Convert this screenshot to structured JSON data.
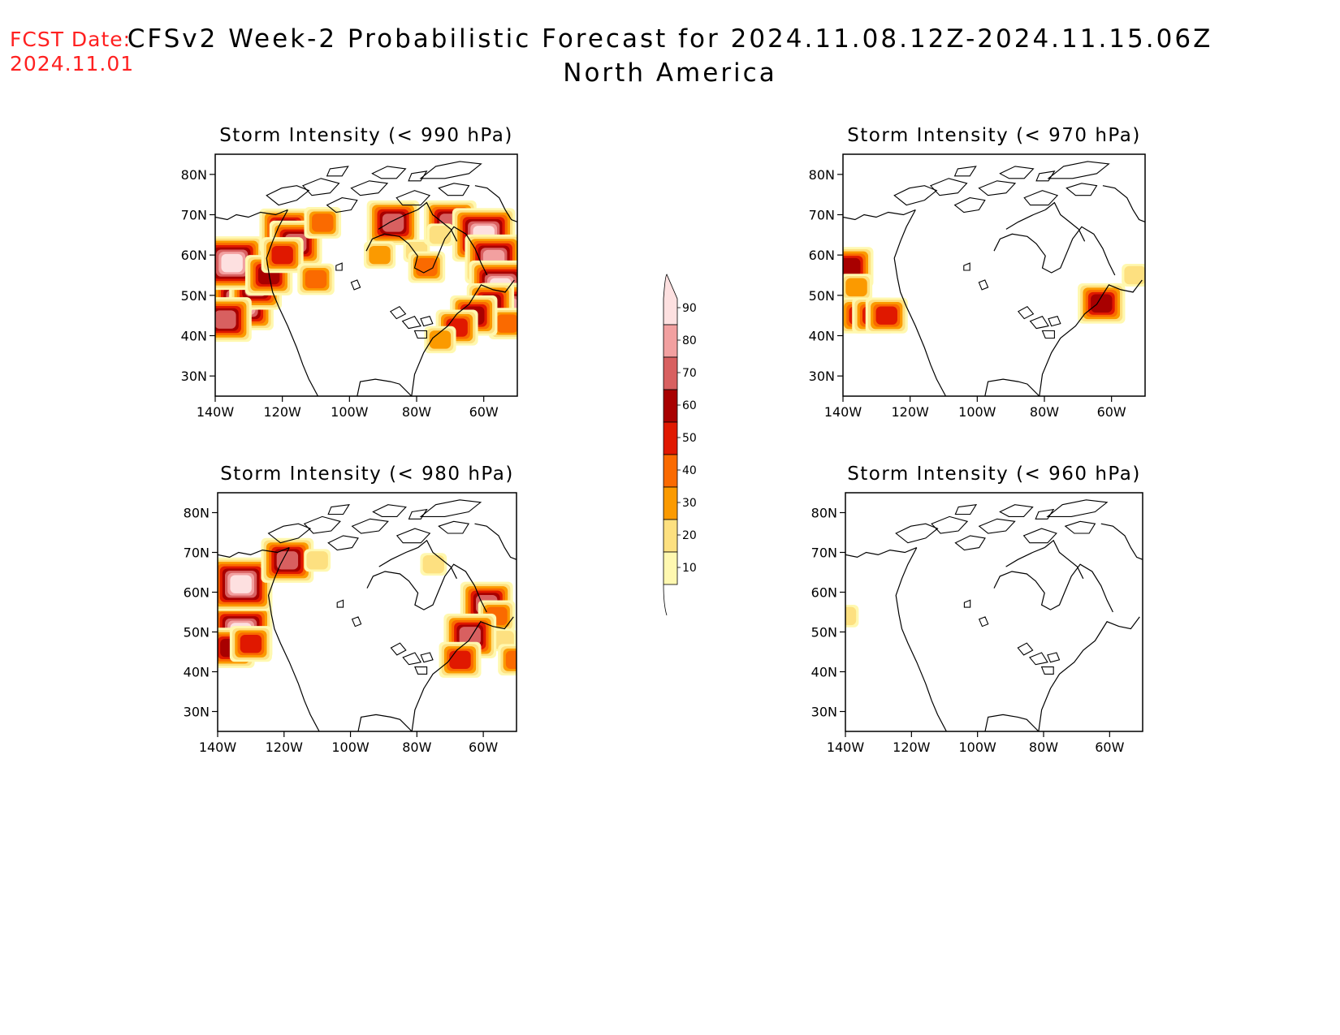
{
  "header": {
    "fcst_label": "FCST Date:",
    "fcst_date": "2024.11.01",
    "title": "CFSv2 Week-2 Probabilistic Forecast for 2024.11.08.12Z-2024.11.15.06Z",
    "subtitle": "North America"
  },
  "map_axes": {
    "lat_ticks": [
      "80N",
      "70N",
      "60N",
      "50N",
      "40N",
      "30N"
    ],
    "lon_ticks": [
      "140W",
      "120W",
      "100W",
      "80W",
      "60W"
    ],
    "lat_values": [
      80,
      70,
      60,
      50,
      40,
      30
    ],
    "lon_values": [
      -140,
      -120,
      -100,
      -80,
      -60
    ],
    "lat_range": [
      25,
      85
    ],
    "lon_range": [
      -140,
      -50
    ]
  },
  "panels": [
    {
      "title": "Storm Intensity (< 990 hPa)",
      "blobs": [
        {
          "lon": -136,
          "lat": 50,
          "prob": 80
        },
        {
          "lon": -132,
          "lat": 48,
          "prob": 90
        },
        {
          "lon": -128,
          "lat": 52,
          "prob": 70
        },
        {
          "lon": -135,
          "lat": 58,
          "prob": 90
        },
        {
          "lon": -137,
          "lat": 44,
          "prob": 70
        },
        {
          "lon": -124,
          "lat": 55,
          "prob": 60
        },
        {
          "lon": -119,
          "lat": 66,
          "prob": 70
        },
        {
          "lon": -116,
          "lat": 63,
          "prob": 70
        },
        {
          "lon": -120,
          "lat": 60,
          "prob": 50
        },
        {
          "lon": -108,
          "lat": 68,
          "prob": 40
        },
        {
          "lon": -110,
          "lat": 54,
          "prob": 40
        },
        {
          "lon": -87,
          "lat": 68,
          "prob": 70
        },
        {
          "lon": -91,
          "lat": 60,
          "prob": 30
        },
        {
          "lon": -80,
          "lat": 61,
          "prob": 20
        },
        {
          "lon": -77,
          "lat": 57,
          "prob": 40
        },
        {
          "lon": -70,
          "lat": 68,
          "prob": 70
        },
        {
          "lon": -73,
          "lat": 65,
          "prob": 20
        },
        {
          "lon": -60,
          "lat": 65,
          "prob": 90
        },
        {
          "lon": -57,
          "lat": 59,
          "prob": 80
        },
        {
          "lon": -55,
          "lat": 52,
          "prob": 90
        },
        {
          "lon": -53,
          "lat": 47,
          "prob": 80
        },
        {
          "lon": -58,
          "lat": 48,
          "prob": 60
        },
        {
          "lon": -53,
          "lat": 43,
          "prob": 40
        },
        {
          "lon": -63,
          "lat": 45,
          "prob": 60
        },
        {
          "lon": -68,
          "lat": 42,
          "prob": 50
        },
        {
          "lon": -73,
          "lat": 39,
          "prob": 30
        }
      ]
    },
    {
      "title": "Storm Intensity (< 970 hPa)",
      "blobs": [
        {
          "lon": -138,
          "lat": 57,
          "prob": 60
        },
        {
          "lon": -136,
          "lat": 52,
          "prob": 30
        },
        {
          "lon": -135,
          "lat": 45,
          "prob": 50
        },
        {
          "lon": -131,
          "lat": 45,
          "prob": 50
        },
        {
          "lon": -127,
          "lat": 45,
          "prob": 50
        },
        {
          "lon": -63,
          "lat": 48,
          "prob": 60
        },
        {
          "lon": -53,
          "lat": 55,
          "prob": 20
        }
      ]
    },
    {
      "title": "Storm Intensity (< 980 hPa)",
      "blobs": [
        {
          "lon": -137,
          "lat": 56,
          "prob": 80
        },
        {
          "lon": -133,
          "lat": 50,
          "prob": 90
        },
        {
          "lon": -136,
          "lat": 46,
          "prob": 60
        },
        {
          "lon": -130,
          "lat": 47,
          "prob": 50
        },
        {
          "lon": -133,
          "lat": 62,
          "prob": 90
        },
        {
          "lon": -119,
          "lat": 68,
          "prob": 70
        },
        {
          "lon": -110,
          "lat": 68,
          "prob": 20
        },
        {
          "lon": -59,
          "lat": 57,
          "prob": 70
        },
        {
          "lon": -56,
          "lat": 54,
          "prob": 40
        },
        {
          "lon": -54,
          "lat": 48,
          "prob": 20
        },
        {
          "lon": -64,
          "lat": 49,
          "prob": 70
        },
        {
          "lon": -67,
          "lat": 43,
          "prob": 50
        },
        {
          "lon": -75,
          "lat": 67,
          "prob": 20
        },
        {
          "lon": -50,
          "lat": 43,
          "prob": 40
        }
      ]
    },
    {
      "title": "Storm Intensity (< 960 hPa)",
      "blobs": [
        {
          "lon": -140,
          "lat": 54,
          "prob": 20
        }
      ]
    }
  ],
  "colorbar": {
    "labels": [
      "90",
      "80",
      "70",
      "60",
      "50",
      "40",
      "30",
      "20",
      "10"
    ],
    "levels": [
      10,
      20,
      30,
      40,
      50,
      60,
      70,
      80,
      90
    ],
    "colors": [
      "#fff8b0",
      "#fde080",
      "#fb9a00",
      "#fa6a00",
      "#e01800",
      "#a80000",
      "#d86060",
      "#f2a0a0",
      "#fde0e0"
    ]
  }
}
